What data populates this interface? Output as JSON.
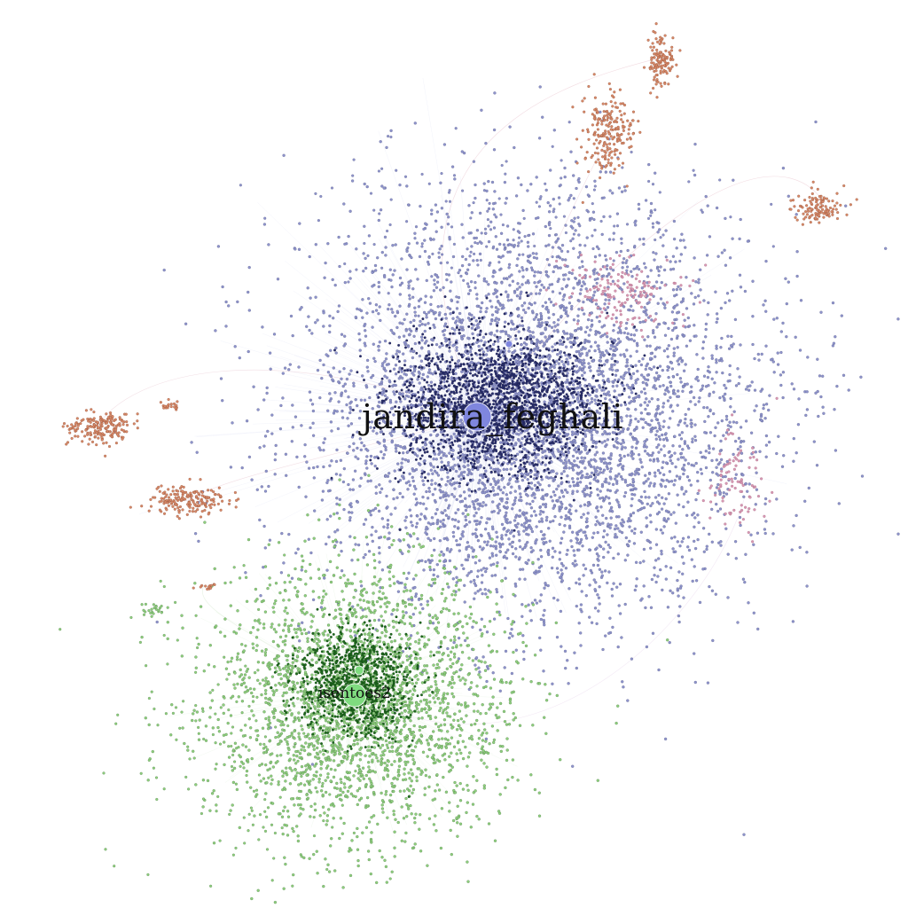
{
  "graph": {
    "type": "network",
    "colors": {
      "blue_nodes": "#8f94cc",
      "blue_core": "#2a2f6e",
      "blue_hub": "#7f86de",
      "green_nodes": "#8fcf7f",
      "green_core": "#1f6a1f",
      "green_hub": "#7fdb7f",
      "red_nodes": "#d88a6a",
      "pink_nodes": "#d99ab5",
      "edges": "#d0d4f0",
      "background": "#ffffff"
    },
    "hubs": [
      {
        "id": "main",
        "label": "jandira_feghali",
        "community": "blue"
      },
      {
        "id": "green",
        "label": "isentoes2",
        "community": "green"
      },
      {
        "id": "green_small",
        "label": "",
        "community": "green"
      }
    ],
    "communities": [
      "blue",
      "green",
      "red",
      "pink"
    ]
  }
}
